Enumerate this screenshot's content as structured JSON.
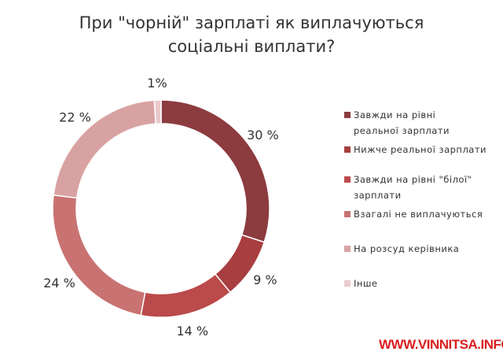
{
  "chart_data": {
    "type": "pie",
    "donut": true,
    "title_lines": [
      "При \"чорній\" зарплаті як виплачуються",
      "соціальні виплати?"
    ],
    "categories": [
      "Завжди на рівні реальної зарплати",
      "Нижче реальної зарплати",
      "Завжди на рівні \"білої\" зарплати",
      "Взагалі не виплачуються",
      "На розсуд керівника",
      "Інше"
    ],
    "values": [
      30,
      9,
      14,
      24,
      22,
      1
    ],
    "data_labels": [
      "30 %",
      "9 %",
      "14 %",
      "24 %",
      "22 %",
      "1%"
    ],
    "colors": [
      "#8c3b3f",
      "#a83e3f",
      "#bb4a4a",
      "#c97272",
      "#d9a2a2",
      "#ebc9ca"
    ],
    "legend_position": "right"
  },
  "watermark": "WWW.VINNITSA.INFO"
}
